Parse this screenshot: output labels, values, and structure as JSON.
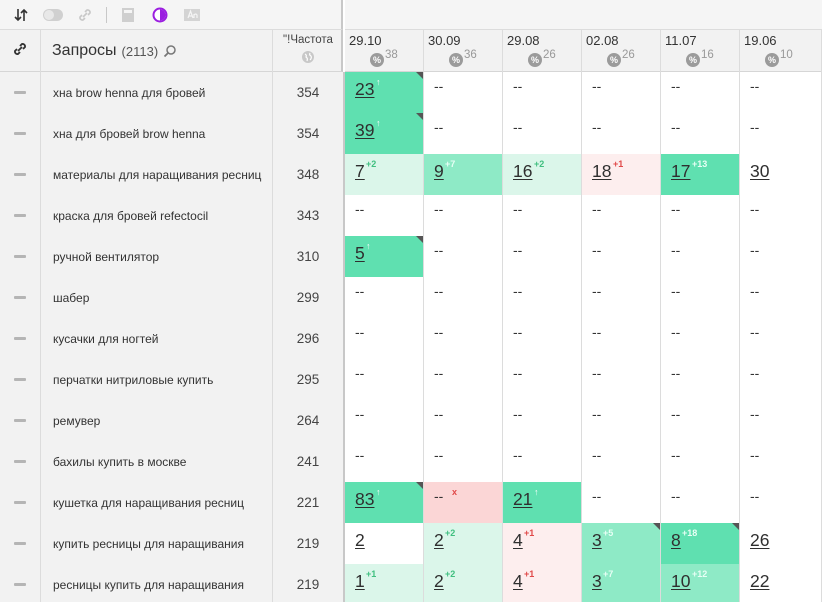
{
  "toolbar": {
    "icons": [
      "sort-icon",
      "toggle-icon",
      "link-icon",
      "calculator-icon",
      "contrast-icon",
      "text-icon"
    ]
  },
  "header": {
    "title": "Запросы",
    "count": "(2113)",
    "freq_label": "\"!Частота"
  },
  "dates": [
    {
      "date": "29.10",
      "pct_num": "38"
    },
    {
      "date": "30.09",
      "pct_num": "36"
    },
    {
      "date": "29.08",
      "pct_num": "26"
    },
    {
      "date": "02.08",
      "pct_num": "26"
    },
    {
      "date": "11.07",
      "pct_num": "16"
    },
    {
      "date": "19.06",
      "pct_num": "10"
    }
  ],
  "pct_symbol": "%",
  "rows": [
    {
      "query": "хна brow henna для бровей",
      "freq": "354",
      "positions": [
        {
          "v": "23",
          "ch": "↑",
          "c": "up",
          "bg": "b-green",
          "corner": true
        },
        {
          "v": "--"
        },
        {
          "v": "--"
        },
        {
          "v": "--"
        },
        {
          "v": "--"
        },
        {
          "v": "--"
        }
      ]
    },
    {
      "query": "хна для бровей brow henna",
      "freq": "354",
      "positions": [
        {
          "v": "39",
          "ch": "↑",
          "c": "up",
          "bg": "b-green",
          "corner": true
        },
        {
          "v": "--"
        },
        {
          "v": "--"
        },
        {
          "v": "--"
        },
        {
          "v": "--"
        },
        {
          "v": "--"
        }
      ]
    },
    {
      "query": "материалы для наращивания ресниц",
      "freq": "348",
      "positions": [
        {
          "v": "7",
          "ch": "+2",
          "c": "gr",
          "bg": "b-light"
        },
        {
          "v": "9",
          "ch": "+7",
          "c": "gr",
          "bg": "b-mid"
        },
        {
          "v": "16",
          "ch": "+2",
          "c": "gr",
          "bg": "b-light"
        },
        {
          "v": "18",
          "ch": "+1",
          "c": "rd",
          "bg": "b-pink"
        },
        {
          "v": "17",
          "ch": "+13",
          "c": "gr",
          "bg": "b-green"
        },
        {
          "v": "30"
        }
      ]
    },
    {
      "query": "краска для бровей refectocil",
      "freq": "343",
      "positions": [
        {
          "v": "--"
        },
        {
          "v": "--"
        },
        {
          "v": "--"
        },
        {
          "v": "--"
        },
        {
          "v": "--"
        },
        {
          "v": "--"
        }
      ]
    },
    {
      "query": "ручной вентилятор",
      "freq": "310",
      "positions": [
        {
          "v": "5",
          "ch": "↑",
          "c": "up",
          "bg": "b-green",
          "corner": true
        },
        {
          "v": "--"
        },
        {
          "v": "--"
        },
        {
          "v": "--"
        },
        {
          "v": "--"
        },
        {
          "v": "--"
        }
      ]
    },
    {
      "query": "шабер",
      "freq": "299",
      "positions": [
        {
          "v": "--"
        },
        {
          "v": "--"
        },
        {
          "v": "--"
        },
        {
          "v": "--"
        },
        {
          "v": "--"
        },
        {
          "v": "--"
        }
      ]
    },
    {
      "query": "кусачки для ногтей",
      "freq": "296",
      "positions": [
        {
          "v": "--"
        },
        {
          "v": "--"
        },
        {
          "v": "--"
        },
        {
          "v": "--"
        },
        {
          "v": "--"
        },
        {
          "v": "--"
        }
      ]
    },
    {
      "query": "перчатки нитриловые купить",
      "freq": "295",
      "positions": [
        {
          "v": "--"
        },
        {
          "v": "--"
        },
        {
          "v": "--"
        },
        {
          "v": "--"
        },
        {
          "v": "--"
        },
        {
          "v": "--"
        }
      ]
    },
    {
      "query": "ремувер",
      "freq": "264",
      "positions": [
        {
          "v": "--"
        },
        {
          "v": "--"
        },
        {
          "v": "--"
        },
        {
          "v": "--"
        },
        {
          "v": "--"
        },
        {
          "v": "--"
        }
      ]
    },
    {
      "query": "бахилы купить в москве",
      "freq": "241",
      "positions": [
        {
          "v": "--"
        },
        {
          "v": "--"
        },
        {
          "v": "--"
        },
        {
          "v": "--"
        },
        {
          "v": "--"
        },
        {
          "v": "--"
        }
      ]
    },
    {
      "query": "кушетка для наращивания ресниц",
      "freq": "221",
      "positions": [
        {
          "v": "83",
          "ch": "↑",
          "c": "up",
          "bg": "b-green",
          "corner": true
        },
        {
          "v": "--",
          "ch": "x",
          "c": "rd",
          "bg": "b-red"
        },
        {
          "v": "21",
          "ch": "↑",
          "c": "up",
          "bg": "b-green"
        },
        {
          "v": "--"
        },
        {
          "v": "--"
        },
        {
          "v": "--"
        }
      ]
    },
    {
      "query": "купить ресницы для наращивания",
      "freq": "219",
      "positions": [
        {
          "v": "2"
        },
        {
          "v": "2",
          "ch": "+2",
          "c": "gr",
          "bg": "b-light"
        },
        {
          "v": "4",
          "ch": "+1",
          "c": "rd",
          "bg": "b-pink"
        },
        {
          "v": "3",
          "ch": "+5",
          "c": "gr",
          "bg": "b-mid",
          "corner": true
        },
        {
          "v": "8",
          "ch": "+18",
          "c": "gr",
          "bg": "b-green",
          "corner": true
        },
        {
          "v": "26"
        }
      ]
    },
    {
      "query": "ресницы купить для наращивания",
      "freq": "219",
      "positions": [
        {
          "v": "1",
          "ch": "+1",
          "c": "gr",
          "bg": "b-light"
        },
        {
          "v": "2",
          "ch": "+2",
          "c": "gr",
          "bg": "b-light"
        },
        {
          "v": "4",
          "ch": "+1",
          "c": "rd",
          "bg": "b-pink"
        },
        {
          "v": "3",
          "ch": "+7",
          "c": "gr",
          "bg": "b-mid"
        },
        {
          "v": "10",
          "ch": "+12",
          "c": "gr",
          "bg": "b-mid"
        },
        {
          "v": "22"
        }
      ]
    }
  ]
}
